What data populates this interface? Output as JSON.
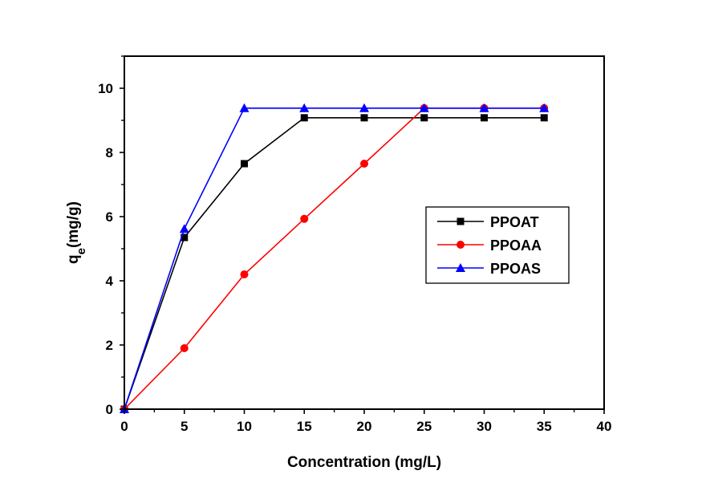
{
  "chart_data": {
    "type": "line",
    "xlabel": "Concentration (mg/L)",
    "ylabel": {
      "main": "q",
      "sub": "e",
      "rest": "(mg/g)"
    },
    "xlim": [
      0,
      40
    ],
    "ylim": [
      0,
      11
    ],
    "xticks": [
      0,
      5,
      10,
      15,
      20,
      25,
      30,
      35,
      40
    ],
    "yticks": [
      0,
      2,
      4,
      6,
      8,
      10
    ],
    "x_tick_labels": [
      "0",
      "5",
      "10",
      "15",
      "20",
      "25",
      "30",
      "35",
      "40"
    ],
    "y_tick_labels": [
      "0",
      "2",
      "4",
      "6",
      "8",
      "10"
    ],
    "grid": false,
    "legend_position": "center-right",
    "series": [
      {
        "name": "PPOAT",
        "color": "#000000",
        "marker": "square",
        "x": [
          0,
          5,
          10,
          15,
          20,
          25,
          30,
          35
        ],
        "y": [
          0,
          5.35,
          7.65,
          9.08,
          9.08,
          9.08,
          9.08,
          9.08
        ]
      },
      {
        "name": "PPOAA",
        "color": "#ff0000",
        "marker": "circle",
        "x": [
          0,
          5,
          10,
          15,
          20,
          25,
          30,
          35
        ],
        "y": [
          0,
          1.9,
          4.2,
          5.93,
          7.65,
          9.38,
          9.38,
          9.38
        ]
      },
      {
        "name": "PPOAS",
        "color": "#0000ff",
        "marker": "triangle",
        "x": [
          0,
          5,
          10,
          15,
          20,
          25,
          30,
          35
        ],
        "y": [
          0,
          5.62,
          9.38,
          9.38,
          9.38,
          9.38,
          9.38,
          9.38
        ]
      }
    ]
  }
}
